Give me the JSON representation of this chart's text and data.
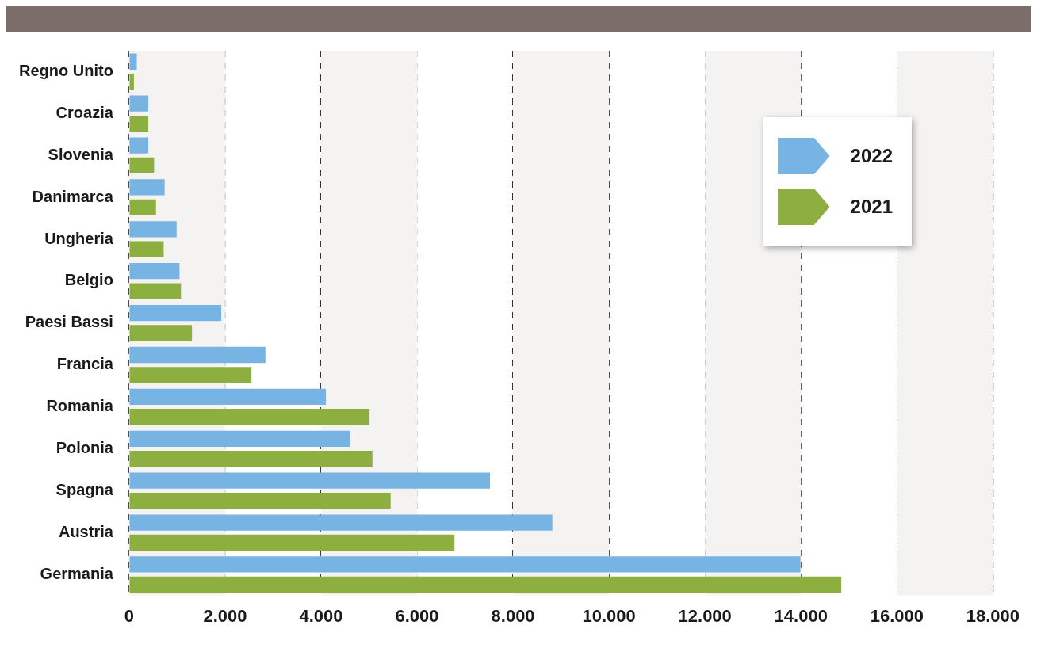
{
  "chart_data": {
    "type": "bar",
    "orientation": "horizontal",
    "categories": [
      "Regno Unito",
      "Croazia",
      "Slovenia",
      "Danimarca",
      "Ungheria",
      "Belgio",
      "Paesi Bassi",
      "Francia",
      "Romania",
      "Polonia",
      "Spagna",
      "Austria",
      "Germania"
    ],
    "series": [
      {
        "name": "2022",
        "color": "#77b4e3",
        "values": [
          160,
          400,
          400,
          740,
          990,
          1050,
          1920,
          2840,
          4100,
          4600,
          7520,
          8820,
          13990
        ]
      },
      {
        "name": "2021",
        "color": "#8daf3f",
        "values": [
          100,
          400,
          520,
          560,
          720,
          1080,
          1310,
          2550,
          5010,
          5070,
          5450,
          6780,
          14840
        ]
      }
    ],
    "xlim": [
      0,
      18000
    ],
    "xticks": [
      {
        "value": 0,
        "label": "0"
      },
      {
        "value": 2000,
        "label": "2.000"
      },
      {
        "value": 4000,
        "label": "4.000"
      },
      {
        "value": 6000,
        "label": "6.000"
      },
      {
        "value": 8000,
        "label": "8.000"
      },
      {
        "value": 10000,
        "label": "10.000"
      },
      {
        "value": 12000,
        "label": "12.000"
      },
      {
        "value": 14000,
        "label": "14.000"
      },
      {
        "value": 16000,
        "label": "16.000"
      },
      {
        "value": 18000,
        "label": "18.000"
      }
    ],
    "bands": [
      {
        "axis": "x",
        "from": 0,
        "to": 2000,
        "color": "#f4f3f1"
      },
      {
        "axis": "x",
        "from": 4000,
        "to": 6000,
        "color": "#f4f3f1"
      },
      {
        "axis": "x",
        "from": 8000,
        "to": 10000,
        "color": "#f4f3f1"
      },
      {
        "axis": "x",
        "from": 12000,
        "to": 14000,
        "color": "#f4f3f1"
      },
      {
        "axis": "x",
        "from": 16000,
        "to": 18000,
        "color": "#f4f3f1"
      }
    ],
    "grid": "x",
    "legend": "top right"
  }
}
